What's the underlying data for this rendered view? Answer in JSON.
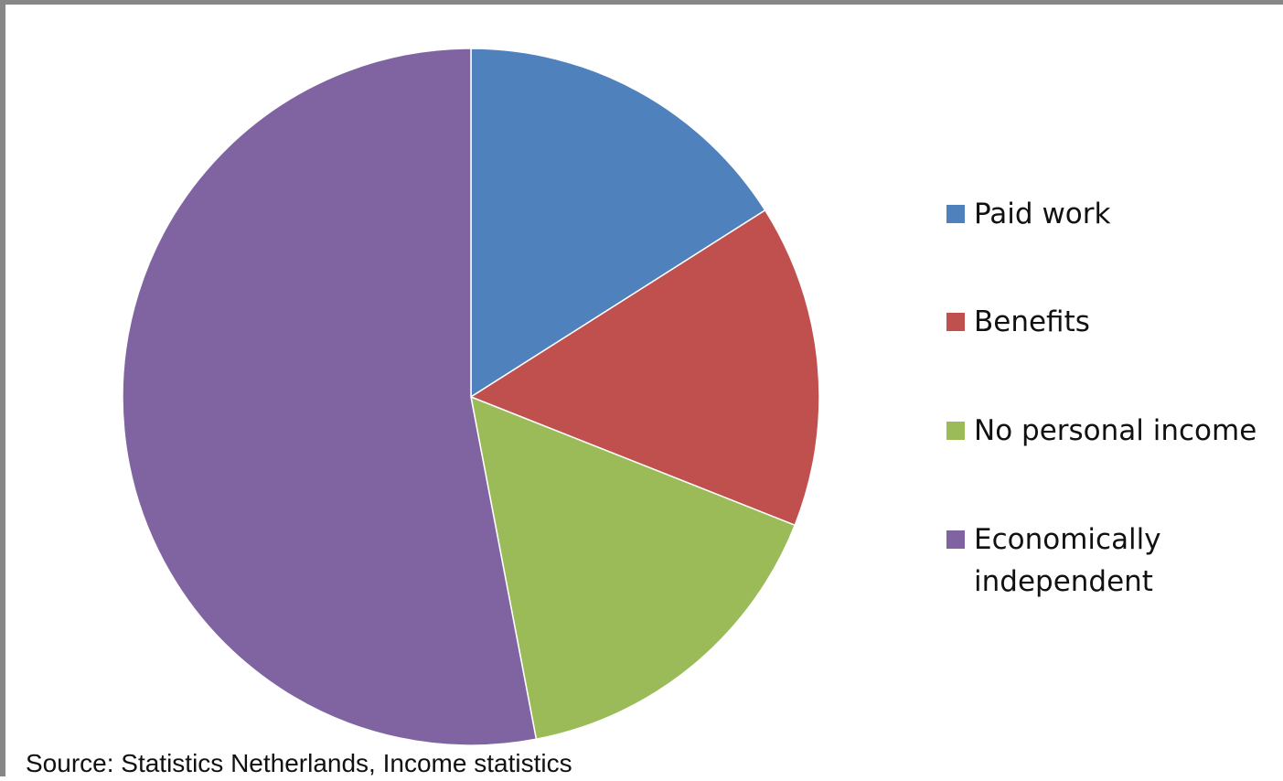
{
  "chart_data": {
    "type": "pie",
    "title": "",
    "categories": [
      "Paid work",
      "Benefits",
      "No personal income",
      "Economically independent"
    ],
    "values": [
      16,
      15,
      16,
      53
    ],
    "unit": "%",
    "start_angle_deg": 0,
    "direction": "clockwise",
    "colors": [
      "#4F81BD",
      "#C0504D",
      "#9BBB59",
      "#8064A2"
    ],
    "legend_position": "right"
  },
  "legend": {
    "items": [
      {
        "label": "Paid work",
        "color": "#4F81BD"
      },
      {
        "label": "Benefits",
        "color": "#C0504D"
      },
      {
        "label": "No personal income",
        "color": "#9BBB59"
      },
      {
        "label": "Economically independent",
        "color": "#8064A2"
      }
    ]
  },
  "source": "Source: Statistics Netherlands,  Income statistics"
}
